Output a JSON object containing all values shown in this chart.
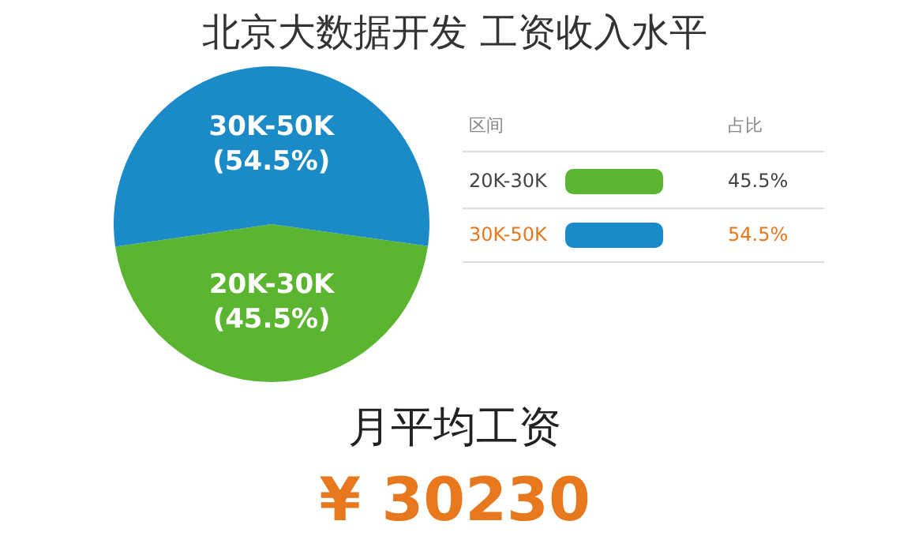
{
  "chart_data": {
    "type": "pie",
    "title": "北京大数据开发 工资收入水平",
    "categories": [
      "20K-30K",
      "30K-50K"
    ],
    "values": [
      45.5,
      54.5
    ],
    "value_labels": [
      "(45.5%)",
      "(54.5%)"
    ],
    "colors": [
      "#5cb531",
      "#1b8bc8"
    ],
    "annotations": [
      "区间",
      "占比",
      "45.5%",
      "54.5%",
      "月平均工资",
      "¥ 30230"
    ]
  }
}
